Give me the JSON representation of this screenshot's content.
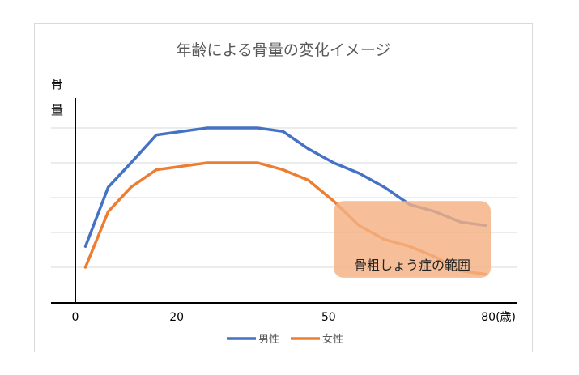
{
  "chart_data": {
    "type": "line",
    "title": "年齢による骨量の変化イメージ",
    "ylabel": "骨量",
    "ylabel_chars": [
      "骨",
      "量"
    ],
    "x_ticks": [
      {
        "value": 0,
        "label": "0"
      },
      {
        "value": 20,
        "label": "20"
      },
      {
        "value": 50,
        "label": "50"
      },
      {
        "value": 80,
        "label": "80(歳)"
      }
    ],
    "xlim": [
      0,
      82
    ],
    "ylim": [
      0,
      5
    ],
    "x": [
      2,
      6.5,
      11,
      16,
      21,
      26,
      31,
      36,
      41,
      46,
      51,
      56,
      61,
      66,
      71,
      76,
      81
    ],
    "series": [
      {
        "name": "男性",
        "color": "#4472C4",
        "values": [
          1.6,
          3.3,
          4.0,
          4.8,
          4.9,
          5.0,
          5.0,
          5.0,
          4.9,
          4.4,
          4.0,
          3.7,
          3.3,
          2.8,
          2.6,
          2.3,
          2.2
        ]
      },
      {
        "name": "女性",
        "color": "#ED7D31",
        "values": [
          1.0,
          2.6,
          3.3,
          3.8,
          3.9,
          4.0,
          4.0,
          4.0,
          3.8,
          3.5,
          2.9,
          2.2,
          1.8,
          1.6,
          1.3,
          0.9,
          0.8
        ]
      }
    ],
    "grid": true,
    "legend_position": "bottom",
    "annotation": {
      "label": "骨粗しょう症の範囲",
      "color": "#F4B183",
      "x_range": [
        51,
        82
      ],
      "y_range": [
        0.7,
        2.9
      ]
    }
  }
}
